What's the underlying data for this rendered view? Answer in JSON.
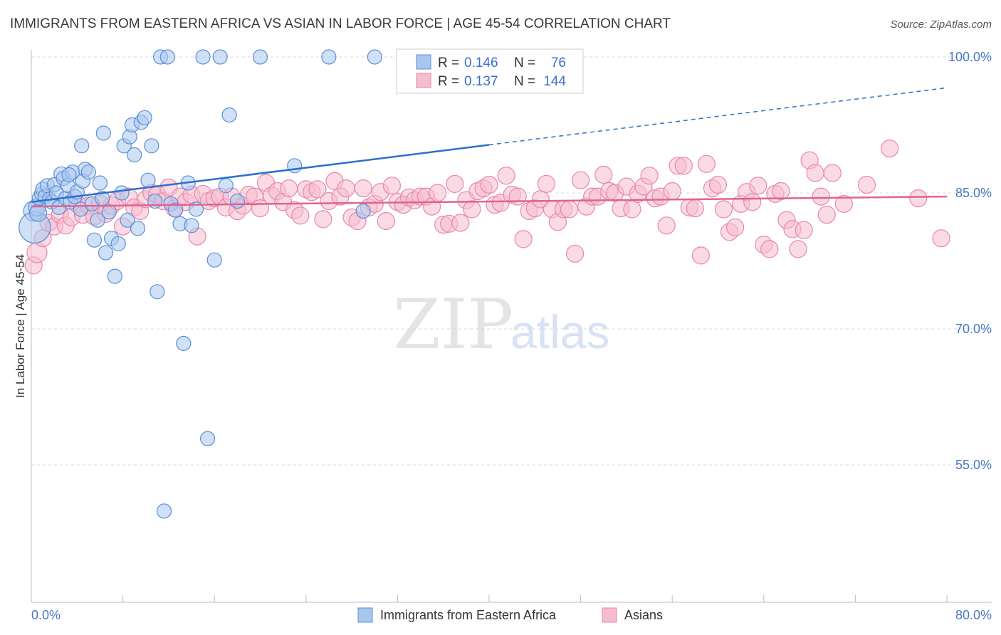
{
  "title": "IMMIGRANTS FROM EASTERN AFRICA VS ASIAN IN LABOR FORCE | AGE 45-54 CORRELATION CHART",
  "source": "Source: ZipAtlas.com",
  "watermark": {
    "zip": "ZIP",
    "atlas": "atlas"
  },
  "colors": {
    "blue_fill": "#a9c6ee",
    "blue_stroke": "#5b8fd6",
    "blue_line": "#2b6fce",
    "pink_fill": "#f6bcd0",
    "pink_stroke": "#e888a8",
    "pink_line": "#e0648f",
    "tick_text": "#4a78c4",
    "grid": "#d8d8d8"
  },
  "legend": {
    "rows": [
      {
        "r_label": "R =",
        "r_value": "0.146",
        "n_label": "N =",
        "n_value": "76"
      },
      {
        "r_label": "R =",
        "r_value": "0.137",
        "n_label": "N =",
        "n_value": "144"
      }
    ]
  },
  "bottom_legend": [
    "Immigrants from Eastern Africa",
    "Asians"
  ],
  "chart_data": {
    "type": "scatter",
    "title": "IMMIGRANTS FROM EASTERN AFRICA VS ASIAN IN LABOR FORCE | AGE 45-54 CORRELATION CHART",
    "xlabel": "",
    "ylabel": "In Labor Force | Age 45-54",
    "xlim": [
      0,
      80
    ],
    "ylim": [
      40,
      101.5
    ],
    "x_tick_labels": [
      "0.0%",
      "80.0%"
    ],
    "y_ticks": [
      55,
      70,
      85,
      100
    ],
    "y_tick_labels": [
      "55.0%",
      "70.0%",
      "85.0%",
      "100.0%"
    ],
    "grid": true,
    "legend_position": "top-center",
    "series": [
      {
        "name": "Immigrants from Eastern Africa",
        "color": "#a9c6ee",
        "r": 0.146,
        "n": 76,
        "trend": {
          "x0": 0,
          "y0": 84.0,
          "x1": 40,
          "y1": 90.3,
          "dashed_to_x": 80,
          "dashed_to_y": 96.6
        },
        "points": [
          [
            0.2,
            83.0,
            14
          ],
          [
            0.3,
            81.2,
            22
          ],
          [
            0.5,
            83.4,
            12
          ],
          [
            0.6,
            82.8,
            12
          ],
          [
            0.7,
            84.4,
            10
          ],
          [
            0.9,
            84.9,
            10
          ],
          [
            1.0,
            85.4,
            10
          ],
          [
            1.2,
            84.6,
            10
          ],
          [
            1.4,
            85.8,
            10
          ],
          [
            1.6,
            84.3,
            10
          ],
          [
            1.8,
            84.0,
            10
          ],
          [
            2.0,
            85.9,
            10
          ],
          [
            2.2,
            85.0,
            10
          ],
          [
            2.4,
            83.4,
            10
          ],
          [
            2.6,
            87.1,
            10
          ],
          [
            2.8,
            86.6,
            10
          ],
          [
            3.0,
            84.4,
            10
          ],
          [
            3.2,
            85.8,
            10
          ],
          [
            3.4,
            84.0,
            10
          ],
          [
            3.6,
            87.3,
            10
          ],
          [
            3.8,
            84.6,
            10
          ],
          [
            4.0,
            85.1,
            10
          ],
          [
            4.3,
            83.2,
            10
          ],
          [
            4.5,
            86.3,
            10
          ],
          [
            4.7,
            87.6,
            10
          ],
          [
            5.0,
            87.3,
            10
          ],
          [
            5.3,
            83.8,
            10
          ],
          [
            5.5,
            79.8,
            10
          ],
          [
            5.8,
            82.0,
            10
          ],
          [
            6.0,
            86.1,
            10
          ],
          [
            6.2,
            84.4,
            10
          ],
          [
            6.5,
            78.4,
            10
          ],
          [
            6.8,
            82.9,
            10
          ],
          [
            7.0,
            80.0,
            10
          ],
          [
            7.3,
            75.8,
            10
          ],
          [
            7.6,
            79.4,
            10
          ],
          [
            7.9,
            85.0,
            10
          ],
          [
            8.1,
            90.2,
            10
          ],
          [
            8.4,
            82.0,
            10
          ],
          [
            8.6,
            91.2,
            10
          ],
          [
            8.8,
            92.5,
            10
          ],
          [
            9.0,
            89.2,
            10
          ],
          [
            9.3,
            81.1,
            10
          ],
          [
            9.6,
            92.8,
            10
          ],
          [
            9.9,
            93.3,
            10
          ],
          [
            10.2,
            86.4,
            10
          ],
          [
            10.5,
            90.2,
            10
          ],
          [
            10.8,
            84.1,
            10
          ],
          [
            11.0,
            74.1,
            10
          ],
          [
            11.3,
            100.0,
            10
          ],
          [
            11.6,
            49.9,
            10
          ],
          [
            11.9,
            100.0,
            10
          ],
          [
            12.2,
            83.8,
            10
          ],
          [
            12.6,
            83.1,
            10
          ],
          [
            13.0,
            81.6,
            10
          ],
          [
            13.3,
            68.4,
            10
          ],
          [
            13.7,
            86.1,
            10
          ],
          [
            14.0,
            81.4,
            10
          ],
          [
            14.4,
            83.2,
            10
          ],
          [
            15.0,
            100.0,
            10
          ],
          [
            15.4,
            57.9,
            10
          ],
          [
            16.0,
            77.6,
            10
          ],
          [
            16.5,
            100.0,
            10
          ],
          [
            17.0,
            85.8,
            10
          ],
          [
            17.3,
            93.6,
            10
          ],
          [
            18.0,
            84.1,
            10
          ],
          [
            20.0,
            100.0,
            10
          ],
          [
            23.0,
            88.0,
            10
          ],
          [
            26.0,
            100.0,
            10
          ],
          [
            29.0,
            83.0,
            10
          ],
          [
            30.0,
            100.0,
            10
          ],
          [
            33.0,
            100.0,
            10
          ],
          [
            35.6,
            100.0,
            10
          ],
          [
            6.3,
            91.6,
            10
          ],
          [
            4.4,
            90.2,
            10
          ],
          [
            3.3,
            87.0,
            10
          ]
        ]
      },
      {
        "name": "Asians",
        "color": "#f6bcd0",
        "r": 0.137,
        "n": 144,
        "trend": {
          "x0": 0,
          "y0": 83.5,
          "x1": 80,
          "y1": 84.6
        },
        "points": [
          [
            0.2,
            77.0,
            12
          ],
          [
            0.5,
            78.4,
            14
          ],
          [
            1.0,
            80.0,
            12
          ],
          [
            1.5,
            81.7,
            12
          ],
          [
            2.0,
            81.3,
            12
          ],
          [
            2.5,
            82.6,
            12
          ],
          [
            3.0,
            81.4,
            12
          ],
          [
            3.5,
            82.3,
            12
          ],
          [
            4.0,
            83.8,
            12
          ],
          [
            4.5,
            82.6,
            12
          ],
          [
            5.0,
            83.6,
            12
          ],
          [
            5.5,
            82.4,
            12
          ],
          [
            6.0,
            83.8,
            12
          ],
          [
            6.5,
            82.7,
            12
          ],
          [
            7.0,
            83.6,
            12
          ],
          [
            7.5,
            84.1,
            12
          ],
          [
            8.0,
            81.3,
            12
          ],
          [
            8.5,
            84.6,
            12
          ],
          [
            9.0,
            83.4,
            12
          ],
          [
            9.5,
            83.0,
            12
          ],
          [
            10.0,
            84.3,
            12
          ],
          [
            10.5,
            85.0,
            12
          ],
          [
            11.0,
            84.8,
            12
          ],
          [
            11.5,
            84.1,
            12
          ],
          [
            12.0,
            85.6,
            12
          ],
          [
            12.5,
            83.3,
            12
          ],
          [
            13.0,
            84.6,
            12
          ],
          [
            13.5,
            84.0,
            12
          ],
          [
            14.0,
            84.8,
            12
          ],
          [
            14.5,
            80.2,
            12
          ],
          [
            15.0,
            84.9,
            12
          ],
          [
            15.5,
            84.1,
            12
          ],
          [
            16.0,
            84.4,
            12
          ],
          [
            16.5,
            84.6,
            12
          ],
          [
            17.0,
            83.4,
            12
          ],
          [
            17.5,
            84.6,
            12
          ],
          [
            18.0,
            83.0,
            12
          ],
          [
            18.5,
            83.6,
            12
          ],
          [
            19.0,
            84.8,
            12
          ],
          [
            19.5,
            84.6,
            12
          ],
          [
            20.0,
            83.3,
            12
          ],
          [
            20.5,
            86.1,
            12
          ],
          [
            21.0,
            84.7,
            12
          ],
          [
            21.5,
            85.2,
            12
          ],
          [
            22.0,
            84.0,
            12
          ],
          [
            22.5,
            85.5,
            12
          ],
          [
            23.0,
            83.1,
            12
          ],
          [
            23.5,
            82.5,
            12
          ],
          [
            24.0,
            85.4,
            12
          ],
          [
            24.5,
            85.1,
            12
          ],
          [
            25.0,
            85.4,
            12
          ],
          [
            25.5,
            82.1,
            12
          ],
          [
            26.0,
            84.1,
            12
          ],
          [
            26.5,
            86.3,
            12
          ],
          [
            27.0,
            84.6,
            12
          ],
          [
            27.5,
            85.5,
            12
          ],
          [
            28.0,
            82.3,
            12
          ],
          [
            28.5,
            81.9,
            12
          ],
          [
            29.0,
            85.5,
            12
          ],
          [
            29.5,
            83.4,
            12
          ],
          [
            30.0,
            83.8,
            12
          ],
          [
            30.5,
            85.1,
            12
          ],
          [
            31.0,
            81.9,
            12
          ],
          [
            31.5,
            85.8,
            12
          ],
          [
            32.0,
            84.0,
            12
          ],
          [
            32.5,
            83.7,
            12
          ],
          [
            33.0,
            84.5,
            12
          ],
          [
            33.5,
            84.2,
            12
          ],
          [
            34.0,
            84.6,
            12
          ],
          [
            34.5,
            84.6,
            12
          ],
          [
            35.0,
            83.5,
            12
          ],
          [
            35.5,
            85.0,
            12
          ],
          [
            36.0,
            81.5,
            12
          ],
          [
            36.5,
            81.6,
            12
          ],
          [
            37.0,
            86.0,
            12
          ],
          [
            37.5,
            81.7,
            12
          ],
          [
            38.0,
            84.2,
            12
          ],
          [
            38.5,
            83.2,
            12
          ],
          [
            39.0,
            85.2,
            12
          ],
          [
            39.5,
            85.5,
            12
          ],
          [
            40.0,
            85.9,
            12
          ],
          [
            40.5,
            83.7,
            12
          ],
          [
            41.0,
            83.9,
            12
          ],
          [
            41.5,
            86.9,
            12
          ],
          [
            42.0,
            84.8,
            12
          ],
          [
            42.5,
            84.6,
            12
          ],
          [
            43.0,
            79.9,
            12
          ],
          [
            43.5,
            83.0,
            12
          ],
          [
            44.0,
            83.3,
            12
          ],
          [
            44.5,
            84.3,
            12
          ],
          [
            45.0,
            86.0,
            12
          ],
          [
            45.5,
            83.2,
            12
          ],
          [
            46.0,
            81.8,
            12
          ],
          [
            46.5,
            83.2,
            12
          ],
          [
            47.0,
            83.2,
            12
          ],
          [
            47.5,
            78.3,
            12
          ],
          [
            48.0,
            86.4,
            12
          ],
          [
            48.5,
            83.5,
            12
          ],
          [
            49.0,
            84.6,
            12
          ],
          [
            49.5,
            84.6,
            12
          ],
          [
            50.0,
            87.0,
            12
          ],
          [
            50.5,
            85.2,
            12
          ],
          [
            51.0,
            85.0,
            12
          ],
          [
            51.5,
            83.3,
            12
          ],
          [
            52.0,
            85.7,
            12
          ],
          [
            52.5,
            83.2,
            12
          ],
          [
            53.0,
            84.9,
            12
          ],
          [
            53.5,
            85.7,
            12
          ],
          [
            54.0,
            86.9,
            12
          ],
          [
            54.5,
            84.4,
            12
          ],
          [
            55.0,
            84.6,
            12
          ],
          [
            55.5,
            81.4,
            12
          ],
          [
            56.0,
            85.2,
            12
          ],
          [
            56.5,
            88.0,
            12
          ],
          [
            57.0,
            88.0,
            12
          ],
          [
            57.5,
            83.4,
            12
          ],
          [
            58.0,
            83.3,
            12
          ],
          [
            58.5,
            78.1,
            12
          ],
          [
            59.0,
            88.2,
            12
          ],
          [
            59.5,
            85.5,
            12
          ],
          [
            60.0,
            85.9,
            12
          ],
          [
            60.5,
            83.2,
            12
          ],
          [
            61.0,
            80.7,
            12
          ],
          [
            61.5,
            81.2,
            12
          ],
          [
            62.0,
            83.8,
            12
          ],
          [
            62.5,
            85.1,
            12
          ],
          [
            63.0,
            84.0,
            12
          ],
          [
            63.5,
            85.8,
            12
          ],
          [
            64.0,
            79.3,
            12
          ],
          [
            64.5,
            78.8,
            12
          ],
          [
            65.0,
            84.9,
            12
          ],
          [
            65.5,
            85.2,
            12
          ],
          [
            66.0,
            82.0,
            12
          ],
          [
            66.5,
            81.0,
            12
          ],
          [
            67.0,
            78.8,
            12
          ],
          [
            67.5,
            80.9,
            12
          ],
          [
            68.0,
            88.6,
            12
          ],
          [
            68.5,
            87.2,
            12
          ],
          [
            69.0,
            84.6,
            12
          ],
          [
            69.5,
            82.6,
            12
          ],
          [
            70.0,
            87.2,
            12
          ],
          [
            71.0,
            83.8,
            12
          ],
          [
            73.0,
            85.9,
            12
          ],
          [
            75.0,
            89.9,
            12
          ],
          [
            77.5,
            84.4,
            12
          ],
          [
            79.5,
            80.0,
            12
          ]
        ]
      }
    ]
  }
}
